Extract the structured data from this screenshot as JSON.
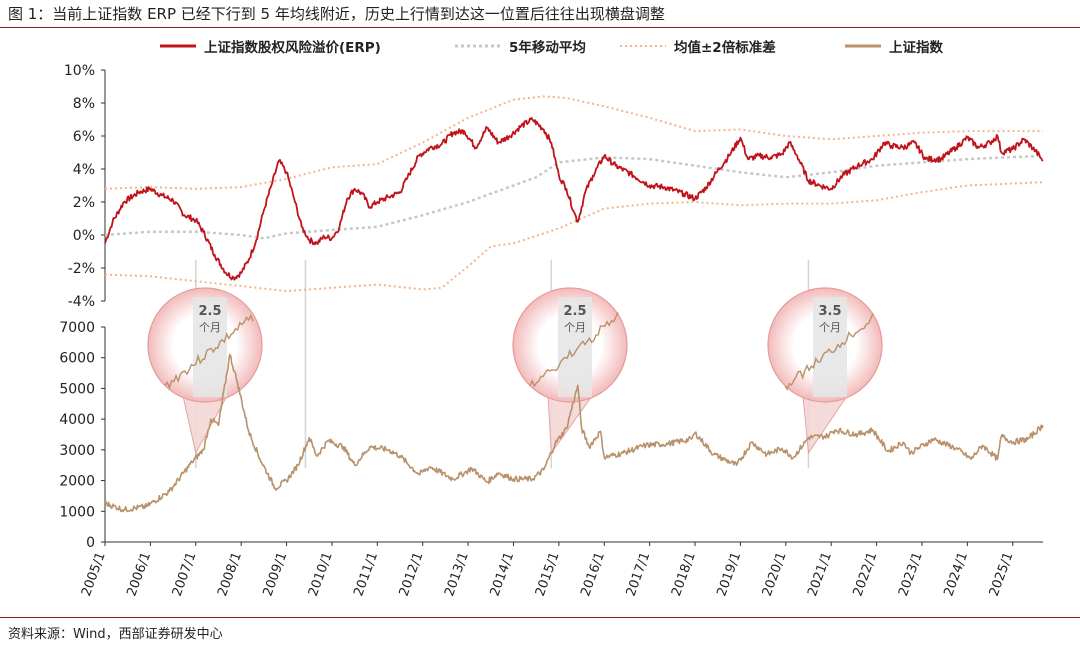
{
  "title": "图 1：当前上证指数 ERP 已经下行到 5 年均线附近，历史上行情到达这一位置后往往出现横盘调整",
  "source": "资料来源：Wind，西部证券研发中心",
  "colors": {
    "erp": "#c0141c",
    "ma5": "#c8c8c8",
    "band": "#f4b38c",
    "index": "#b9916a",
    "annotation_fill": "#f4d6d6",
    "annotation_stroke": "#e79a9a",
    "shade": "#e6e6e6"
  },
  "chart_data": [
    {
      "type": "line",
      "x_range": [
        "2005/1",
        "2025/9"
      ],
      "ylim": [
        -4,
        10
      ],
      "y_tick_labels": [
        "10%",
        "8%",
        "6%",
        "4%",
        "2%",
        "0%",
        "-2%",
        "-4%"
      ],
      "y_ticks": [
        10,
        8,
        6,
        4,
        2,
        0,
        -2,
        -4
      ],
      "series": [
        {
          "name": "上证指数股权风险溢价(ERP)",
          "color": "#c0141c",
          "points": [
            [
              "2005/1",
              -0.5
            ],
            [
              "2005/3",
              0.8
            ],
            [
              "2005/6",
              2.0
            ],
            [
              "2005/10",
              2.6
            ],
            [
              "2006/1",
              2.8
            ],
            [
              "2006/4",
              2.4
            ],
            [
              "2006/7",
              2.1
            ],
            [
              "2006/10",
              1.2
            ],
            [
              "2007/1",
              0.9
            ],
            [
              "2007/3",
              0.2
            ],
            [
              "2007/6",
              -1.2
            ],
            [
              "2007/9",
              -2.3
            ],
            [
              "2007/11",
              -2.6
            ],
            [
              "2008/1",
              -2.3
            ],
            [
              "2008/3",
              -1.5
            ],
            [
              "2008/5",
              -0.3
            ],
            [
              "2008/7",
              1.5
            ],
            [
              "2008/9",
              3.0
            ],
            [
              "2008/11",
              4.5
            ],
            [
              "2009/1",
              3.8
            ],
            [
              "2009/3",
              2.2
            ],
            [
              "2009/5",
              0.5
            ],
            [
              "2009/7",
              -0.3
            ],
            [
              "2009/9",
              -0.5
            ],
            [
              "2009/11",
              -0.1
            ],
            [
              "2010/1",
              -0.2
            ],
            [
              "2010/3",
              0.5
            ],
            [
              "2010/5",
              2.2
            ],
            [
              "2010/7",
              2.8
            ],
            [
              "2010/9",
              2.5
            ],
            [
              "2010/11",
              1.7
            ],
            [
              "2011/1",
              2.0
            ],
            [
              "2011/4",
              2.3
            ],
            [
              "2011/7",
              2.6
            ],
            [
              "2011/9",
              3.5
            ],
            [
              "2011/12",
              4.8
            ],
            [
              "2012/3",
              5.3
            ],
            [
              "2012/6",
              5.5
            ],
            [
              "2012/9",
              6.2
            ],
            [
              "2012/12",
              6.3
            ],
            [
              "2013/3",
              5.3
            ],
            [
              "2013/6",
              6.5
            ],
            [
              "2013/9",
              5.6
            ],
            [
              "2013/12",
              6.0
            ],
            [
              "2014/3",
              6.6
            ],
            [
              "2014/6",
              7.0
            ],
            [
              "2014/9",
              6.4
            ],
            [
              "2014/11",
              5.6
            ],
            [
              "2015/1",
              3.6
            ],
            [
              "2015/3",
              2.8
            ],
            [
              "2015/5",
              1.4
            ],
            [
              "2015/6",
              0.8
            ],
            [
              "2015/8",
              2.6
            ],
            [
              "2015/10",
              3.6
            ],
            [
              "2016/1",
              4.8
            ],
            [
              "2016/4",
              4.2
            ],
            [
              "2016/8",
              3.7
            ],
            [
              "2017/1",
              3.0
            ],
            [
              "2017/5",
              2.9
            ],
            [
              "2017/10",
              2.5
            ],
            [
              "2018/1",
              2.2
            ],
            [
              "2018/4",
              2.9
            ],
            [
              "2018/7",
              3.9
            ],
            [
              "2018/10",
              4.8
            ],
            [
              "2019/1",
              5.9
            ],
            [
              "2019/3",
              4.6
            ],
            [
              "2019/6",
              4.8
            ],
            [
              "2019/9",
              4.7
            ],
            [
              "2019/12",
              4.9
            ],
            [
              "2020/2",
              5.6
            ],
            [
              "2020/4",
              4.8
            ],
            [
              "2020/7",
              3.3
            ],
            [
              "2020/10",
              3.0
            ],
            [
              "2021/1",
              2.8
            ],
            [
              "2021/4",
              3.6
            ],
            [
              "2021/8",
              4.2
            ],
            [
              "2021/12",
              4.6
            ],
            [
              "2022/3",
              5.6
            ],
            [
              "2022/5",
              5.4
            ],
            [
              "2022/8",
              5.3
            ],
            [
              "2022/11",
              5.6
            ],
            [
              "2023/2",
              4.6
            ],
            [
              "2023/6",
              4.6
            ],
            [
              "2023/10",
              5.3
            ],
            [
              "2024/1",
              5.9
            ],
            [
              "2024/4",
              5.3
            ],
            [
              "2024/7",
              5.6
            ],
            [
              "2024/9",
              6.0
            ],
            [
              "2024/10",
              5.0
            ],
            [
              "2025/1",
              5.2
            ],
            [
              "2025/4",
              5.8
            ],
            [
              "2025/7",
              5.1
            ],
            [
              "2025/9",
              4.5
            ]
          ]
        },
        {
          "name": "5年移动平均",
          "color": "#c8c8c8",
          "points": [
            [
              "2005/1",
              0.0
            ],
            [
              "2006/1",
              0.2
            ],
            [
              "2007/1",
              0.2
            ],
            [
              "2008/1",
              0.0
            ],
            [
              "2008/7",
              -0.2
            ],
            [
              "2009/1",
              0.1
            ],
            [
              "2010/1",
              0.3
            ],
            [
              "2011/1",
              0.5
            ],
            [
              "2012/1",
              1.2
            ],
            [
              "2013/1",
              2.0
            ],
            [
              "2014/1",
              3.0
            ],
            [
              "2014/7",
              3.5
            ],
            [
              "2015/1",
              4.4
            ],
            [
              "2016/1",
              4.7
            ],
            [
              "2017/1",
              4.6
            ],
            [
              "2018/1",
              4.2
            ],
            [
              "2019/1",
              3.8
            ],
            [
              "2020/1",
              3.5
            ],
            [
              "2021/1",
              3.8
            ],
            [
              "2022/1",
              4.2
            ],
            [
              "2023/1",
              4.4
            ],
            [
              "2024/1",
              4.6
            ],
            [
              "2025/9",
              4.8
            ]
          ]
        },
        {
          "name": "均值±2倍标准差",
          "color": "#f4b38c",
          "upper": [
            [
              "2005/1",
              2.8
            ],
            [
              "2006/1",
              2.9
            ],
            [
              "2007/1",
              2.8
            ],
            [
              "2008/1",
              2.9
            ],
            [
              "2009/1",
              3.4
            ],
            [
              "2010/1",
              4.1
            ],
            [
              "2011/1",
              4.3
            ],
            [
              "2012/1",
              5.6
            ],
            [
              "2013/1",
              7.1
            ],
            [
              "2014/1",
              8.2
            ],
            [
              "2014/9",
              8.4
            ],
            [
              "2015/3",
              8.3
            ],
            [
              "2016/1",
              7.8
            ],
            [
              "2017/1",
              7.1
            ],
            [
              "2018/1",
              6.3
            ],
            [
              "2019/1",
              6.4
            ],
            [
              "2020/1",
              6.0
            ],
            [
              "2021/1",
              5.8
            ],
            [
              "2022/1",
              6.0
            ],
            [
              "2023/1",
              6.2
            ],
            [
              "2024/1",
              6.3
            ],
            [
              "2025/9",
              6.3
            ]
          ],
          "lower": [
            [
              "2005/1",
              -2.4
            ],
            [
              "2006/1",
              -2.5
            ],
            [
              "2007/1",
              -2.8
            ],
            [
              "2008/1",
              -3.1
            ],
            [
              "2009/1",
              -3.4
            ],
            [
              "2010/1",
              -3.2
            ],
            [
              "2011/1",
              -3.0
            ],
            [
              "2012/1",
              -3.3
            ],
            [
              "2012/6",
              -3.2
            ],
            [
              "2013/1",
              -1.9
            ],
            [
              "2013/7",
              -0.7
            ],
            [
              "2014/1",
              -0.5
            ],
            [
              "2015/1",
              0.4
            ],
            [
              "2016/1",
              1.6
            ],
            [
              "2017/1",
              1.9
            ],
            [
              "2018/1",
              2.0
            ],
            [
              "2019/1",
              1.8
            ],
            [
              "2020/1",
              1.9
            ],
            [
              "2021/1",
              1.9
            ],
            [
              "2022/1",
              2.1
            ],
            [
              "2023/1",
              2.6
            ],
            [
              "2024/1",
              3.0
            ],
            [
              "2025/9",
              3.2
            ]
          ]
        }
      ]
    },
    {
      "type": "line",
      "x_range": [
        "2005/1",
        "2025/9"
      ],
      "ylim": [
        0,
        7000
      ],
      "y_tick_labels": [
        "7000",
        "6000",
        "5000",
        "4000",
        "3000",
        "2000",
        "1000",
        "0"
      ],
      "y_ticks": [
        7000,
        6000,
        5000,
        4000,
        3000,
        2000,
        1000,
        0
      ],
      "x_tick_labels": [
        "2005/1",
        "2006/1",
        "2007/1",
        "2008/1",
        "2009/1",
        "2010/1",
        "2011/1",
        "2012/1",
        "2013/1",
        "2014/1",
        "2015/1",
        "2016/1",
        "2017/1",
        "2018/1",
        "2019/1",
        "2020/1",
        "2021/1",
        "2022/1",
        "2023/1",
        "2024/1",
        "2025/1"
      ],
      "series": [
        {
          "name": "上证指数",
          "color": "#b9916a",
          "points": [
            [
              "2005/1",
              1260
            ],
            [
              "2005/6",
              1050
            ],
            [
              "2005/12",
              1160
            ],
            [
              "2006/6",
              1650
            ],
            [
              "2006/12",
              2600
            ],
            [
              "2007/3",
              3000
            ],
            [
              "2007/5",
              4000
            ],
            [
              "2007/7",
              3800
            ],
            [
              "2007/10",
              6100
            ],
            [
              "2007/12",
              5200
            ],
            [
              "2008/3",
              3600
            ],
            [
              "2008/6",
              2700
            ],
            [
              "2008/10",
              1750
            ],
            [
              "2009/1",
              2000
            ],
            [
              "2009/4",
              2500
            ],
            [
              "2009/7",
              3400
            ],
            [
              "2009/9",
              2800
            ],
            [
              "2009/12",
              3300
            ],
            [
              "2010/4",
              3100
            ],
            [
              "2010/7",
              2500
            ],
            [
              "2010/11",
              3100
            ],
            [
              "2011/4",
              3000
            ],
            [
              "2011/7",
              2800
            ],
            [
              "2011/12",
              2200
            ],
            [
              "2012/3",
              2450
            ],
            [
              "2012/9",
              2050
            ],
            [
              "2012/12",
              2250
            ],
            [
              "2013/2",
              2400
            ],
            [
              "2013/6",
              1950
            ],
            [
              "2013/9",
              2250
            ],
            [
              "2014/1",
              2050
            ],
            [
              "2014/6",
              2050
            ],
            [
              "2014/9",
              2350
            ],
            [
              "2014/12",
              3200
            ],
            [
              "2015/3",
              3700
            ],
            [
              "2015/6",
              5100
            ],
            [
              "2015/7",
              3700
            ],
            [
              "2015/9",
              3100
            ],
            [
              "2015/12",
              3600
            ],
            [
              "2016/1",
              2750
            ],
            [
              "2016/6",
              2900
            ],
            [
              "2016/12",
              3150
            ],
            [
              "2017/6",
              3200
            ],
            [
              "2017/12",
              3350
            ],
            [
              "2018/1",
              3550
            ],
            [
              "2018/6",
              2850
            ],
            [
              "2018/12",
              2500
            ],
            [
              "2019/4",
              3250
            ],
            [
              "2019/8",
              2850
            ],
            [
              "2019/12",
              3050
            ],
            [
              "2020/3",
              2750
            ],
            [
              "2020/7",
              3400
            ],
            [
              "2020/12",
              3450
            ],
            [
              "2021/2",
              3650
            ],
            [
              "2021/8",
              3500
            ],
            [
              "2021/12",
              3650
            ],
            [
              "2022/4",
              2950
            ],
            [
              "2022/8",
              3250
            ],
            [
              "2022/10",
              2900
            ],
            [
              "2023/4",
              3350
            ],
            [
              "2023/10",
              3050
            ],
            [
              "2024/2",
              2700
            ],
            [
              "2024/5",
              3150
            ],
            [
              "2024/9",
              2700
            ],
            [
              "2024/10",
              3450
            ],
            [
              "2025/1",
              3250
            ],
            [
              "2025/5",
              3350
            ],
            [
              "2025/9",
              3800
            ]
          ]
        }
      ],
      "annotations": [
        {
          "label": "2.5",
          "sub": "个月",
          "start": "2007/1",
          "end": "2007/4",
          "peak_marker": "2007/1"
        },
        {
          "label": "2.5",
          "sub": "个月",
          "start": "2014/11",
          "end": "2015/1",
          "peak_marker": "2014/11"
        },
        {
          "label": "3.5",
          "sub": "个月",
          "start": "2020/7",
          "end": "2020/10",
          "peak_marker": "2020/7"
        }
      ],
      "reference_lines": [
        "2007/1",
        "2009/6",
        "2014/11",
        "2020/7"
      ]
    }
  ]
}
